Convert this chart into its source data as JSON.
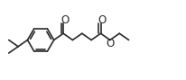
{
  "bg_color": "#ffffff",
  "line_color": "#2a2a2a",
  "line_width": 1.2,
  "figsize": [
    2.07,
    0.89
  ],
  "dpi": 100,
  "xlim": [
    0,
    20
  ],
  "ylim": [
    -1,
    8
  ]
}
